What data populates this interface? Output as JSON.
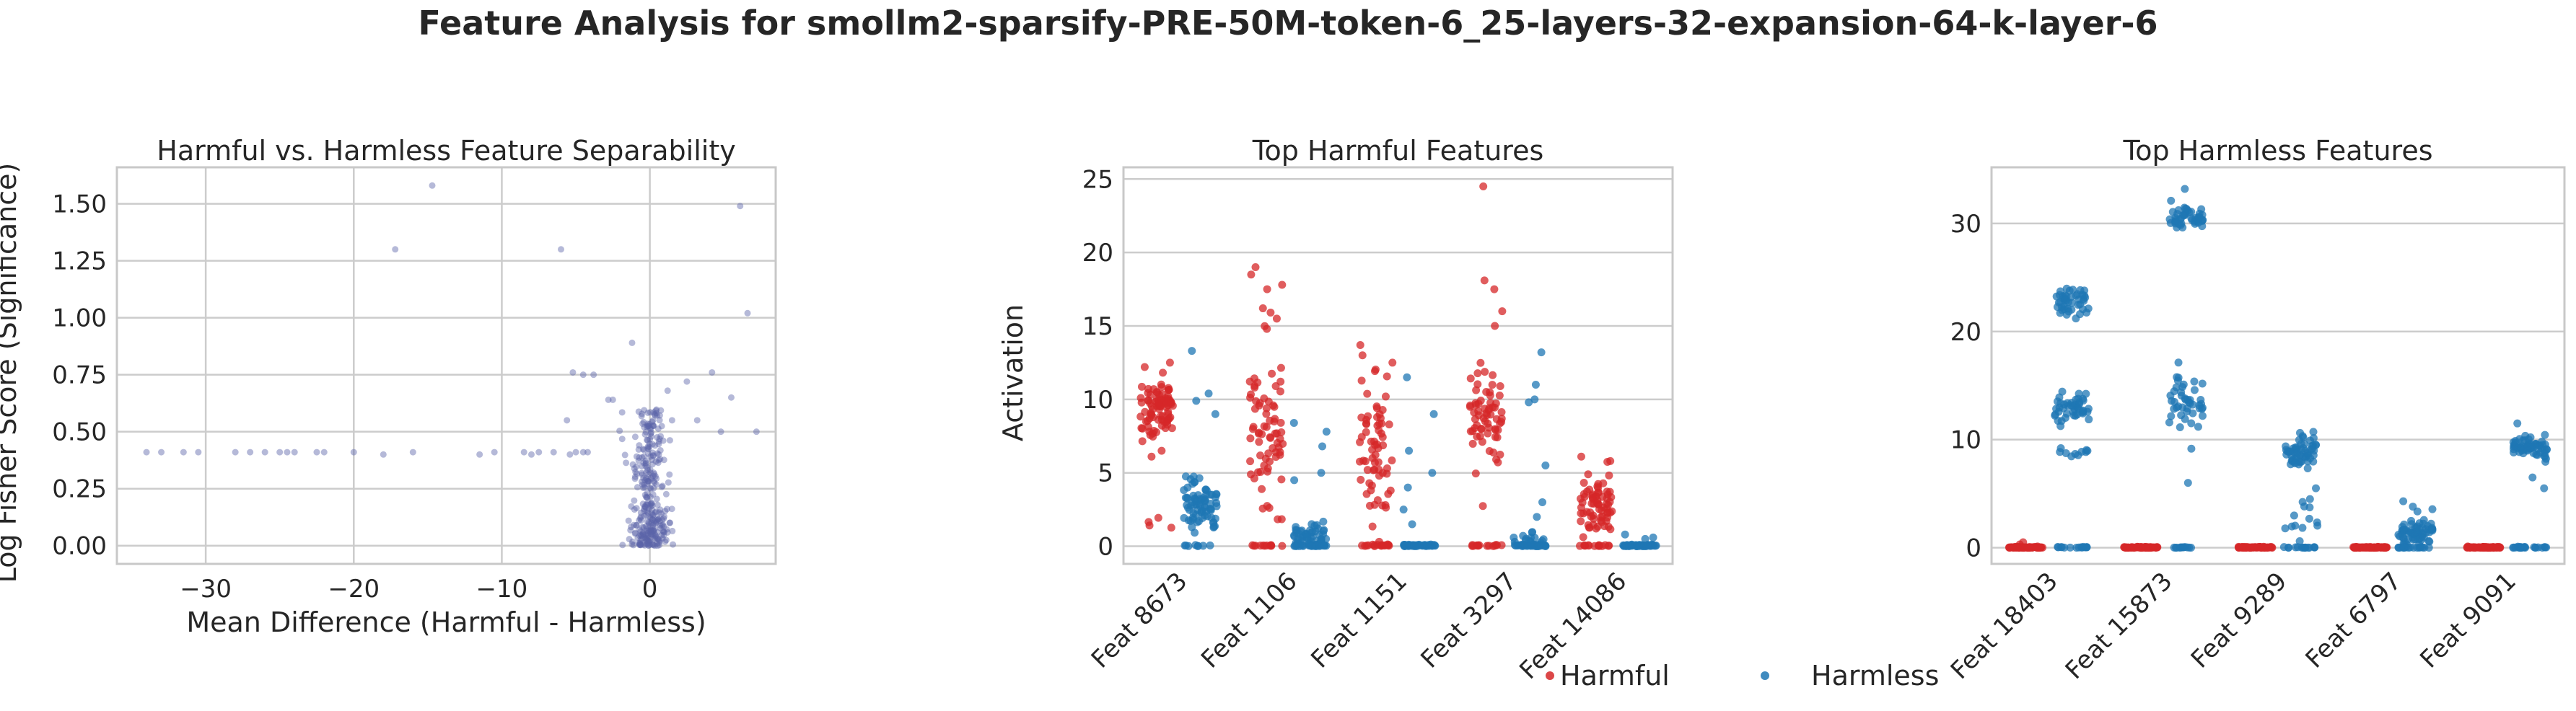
{
  "figure": {
    "title": "Feature Analysis for smollm2-sparsify-PRE-50M-token-6_25-layers-32-expansion-64-k-layer-6"
  },
  "colors": {
    "harmful": "#d62728",
    "harmless": "#1f77b4",
    "scatter": "#5b63a8",
    "grid": "#cccccc",
    "spine": "#c8c8c8"
  },
  "legend": {
    "placement": "bottom-center",
    "items": [
      {
        "label": "Harmful",
        "color": "#d62728"
      },
      {
        "label": "Harmless",
        "color": "#1f77b4"
      }
    ]
  },
  "chart_data": [
    {
      "type": "scatter",
      "title": "Harmful vs. Harmless Feature Separability",
      "xlabel": "Mean Difference (Harmful - Harmless)",
      "ylabel": "Log Fisher Score (Significance)",
      "xlim": [
        -36,
        8.5
      ],
      "ylim": [
        -0.08,
        1.66
      ],
      "xticks": [
        -30,
        -20,
        -10,
        0
      ],
      "yticks": [
        0.0,
        0.25,
        0.5,
        0.75,
        1.0,
        1.25,
        1.5
      ],
      "ytick_labels": [
        "0.00",
        "0.25",
        "0.50",
        "0.75",
        "1.00",
        "1.25",
        "1.50"
      ],
      "grid": true,
      "outliers": [
        {
          "x": -34,
          "y": 0.41
        },
        {
          "x": -33,
          "y": 0.41
        },
        {
          "x": -31.5,
          "y": 0.41
        },
        {
          "x": -30.5,
          "y": 0.41
        },
        {
          "x": -28,
          "y": 0.41
        },
        {
          "x": -27,
          "y": 0.41
        },
        {
          "x": -26,
          "y": 0.41
        },
        {
          "x": -25,
          "y": 0.41
        },
        {
          "x": -24.5,
          "y": 0.41
        },
        {
          "x": -24,
          "y": 0.41
        },
        {
          "x": -22.5,
          "y": 0.41
        },
        {
          "x": -22,
          "y": 0.41
        },
        {
          "x": -20,
          "y": 0.41
        },
        {
          "x": -18,
          "y": 0.4
        },
        {
          "x": -16,
          "y": 0.41
        },
        {
          "x": -14.7,
          "y": 1.58
        },
        {
          "x": -17.2,
          "y": 1.3
        },
        {
          "x": -11.5,
          "y": 0.4
        },
        {
          "x": -10.5,
          "y": 0.41
        },
        {
          "x": -8.5,
          "y": 0.41
        },
        {
          "x": -8,
          "y": 0.4
        },
        {
          "x": -7.5,
          "y": 0.41
        },
        {
          "x": -6.5,
          "y": 0.41
        },
        {
          "x": -6,
          "y": 1.3
        },
        {
          "x": -5.6,
          "y": 0.55
        },
        {
          "x": -5.4,
          "y": 0.4
        },
        {
          "x": -5,
          "y": 0.41
        },
        {
          "x": -4.5,
          "y": 0.41
        },
        {
          "x": -4.2,
          "y": 0.41
        },
        {
          "x": -5.2,
          "y": 0.76
        },
        {
          "x": -4.5,
          "y": 0.75
        },
        {
          "x": -3.8,
          "y": 0.75
        },
        {
          "x": -2.8,
          "y": 0.64
        },
        {
          "x": -2.5,
          "y": 0.64
        },
        {
          "x": -1.2,
          "y": 0.89
        },
        {
          "x": 1.5,
          "y": 0.55
        },
        {
          "x": 1.2,
          "y": 0.68
        },
        {
          "x": 2.5,
          "y": 0.72
        },
        {
          "x": 3.2,
          "y": 0.55
        },
        {
          "x": 4.2,
          "y": 0.76
        },
        {
          "x": 4.8,
          "y": 0.5
        },
        {
          "x": 5.5,
          "y": 0.65
        },
        {
          "x": 6.1,
          "y": 1.49
        },
        {
          "x": 6.6,
          "y": 1.02
        },
        {
          "x": 7.2,
          "y": 0.5
        }
      ],
      "cluster": {
        "x_center": 0.0,
        "x_spread": 1.1,
        "y_min": 0.0,
        "y_max": 0.6,
        "count": 320
      }
    },
    {
      "type": "strip",
      "title": "Top Harmful Features",
      "xlabel": "",
      "ylabel": "Activation",
      "categories": [
        "Feat 8673",
        "Feat 1106",
        "Feat 1151",
        "Feat 3297",
        "Feat 14086"
      ],
      "ylim": [
        -1.2,
        25.8
      ],
      "yticks": [
        0,
        5,
        10,
        15,
        20,
        25
      ],
      "grid": true,
      "series": [
        {
          "name": "Harmful",
          "color": "#d62728",
          "groups": [
            {
              "clusters": [
                {
                  "center": 9.2,
                  "spread": 1.6,
                  "count": 85
                },
                {
                  "center": 1.5,
                  "spread": 0.6,
                  "count": 4
                }
              ],
              "outliers": [
                12.2,
                12.5,
                6.5,
                6.1
              ]
            },
            {
              "clusters": [
                {
                  "center": 7.5,
                  "spread": 4.5,
                  "count": 70
                },
                {
                  "center": 0.05,
                  "spread": 0.05,
                  "count": 12
                }
              ],
              "outliers": [
                19.0,
                18.5,
                17.8,
                17.5,
                16.2,
                15.5,
                14.8
              ]
            },
            {
              "clusters": [
                {
                  "center": 6.5,
                  "spread": 4.0,
                  "count": 65
                },
                {
                  "center": 0.05,
                  "spread": 0.05,
                  "count": 18
                }
              ],
              "outliers": [
                13.7,
                13.0,
                12.5
              ]
            },
            {
              "clusters": [
                {
                  "center": 9.0,
                  "spread": 3.0,
                  "count": 65
                },
                {
                  "center": 0.05,
                  "spread": 0.05,
                  "count": 15
                }
              ],
              "outliers": [
                24.5,
                18.1,
                17.5,
                16.0,
                15.0
              ]
            },
            {
              "clusters": [
                {
                  "center": 2.8,
                  "spread": 1.8,
                  "count": 70
                },
                {
                  "center": 0.05,
                  "spread": 0.05,
                  "count": 15
                }
              ],
              "outliers": [
                6.1,
                5.8
              ]
            }
          ]
        },
        {
          "name": "Harmless",
          "color": "#1f77b4",
          "groups": [
            {
              "clusters": [
                {
                  "center": 3.0,
                  "spread": 1.4,
                  "count": 75
                },
                {
                  "center": 0.05,
                  "spread": 0.05,
                  "count": 8
                }
              ],
              "outliers": [
                13.3,
                10.4,
                9.9,
                9.0
              ]
            },
            {
              "clusters": [
                {
                  "center": 0.7,
                  "spread": 0.8,
                  "count": 55
                },
                {
                  "center": 0.05,
                  "spread": 0.05,
                  "count": 25
                }
              ],
              "outliers": [
                8.4,
                7.8,
                6.8,
                5.0,
                4.5
              ]
            },
            {
              "clusters": [
                {
                  "center": 0.05,
                  "spread": 0.05,
                  "count": 60
                }
              ],
              "outliers": [
                11.5,
                9.0,
                6.5,
                5.0,
                4.0,
                2.5,
                1.5
              ]
            },
            {
              "clusters": [
                {
                  "center": 0.05,
                  "spread": 0.05,
                  "count": 50
                },
                {
                  "center": 0.5,
                  "spread": 0.4,
                  "count": 15
                }
              ],
              "outliers": [
                13.2,
                11.0,
                10.0,
                9.8,
                5.5,
                3.0,
                2.0
              ]
            },
            {
              "clusters": [
                {
                  "center": 0.05,
                  "spread": 0.05,
                  "count": 60
                }
              ],
              "outliers": [
                0.8,
                0.6,
                0.5
              ]
            }
          ]
        }
      ]
    },
    {
      "type": "strip",
      "title": "Top Harmless Features",
      "xlabel": "",
      "ylabel": "",
      "categories": [
        "Feat 18403",
        "Feat 15873",
        "Feat 9289",
        "Feat 6797",
        "Feat 9091"
      ],
      "ylim": [
        -1.5,
        35.2
      ],
      "yticks": [
        0,
        10,
        20,
        30
      ],
      "grid": true,
      "series": [
        {
          "name": "Harmful",
          "color": "#d62728",
          "groups": [
            {
              "clusters": [
                {
                  "center": 0.02,
                  "spread": 0.05,
                  "count": 70
                }
              ],
              "outliers": [
                0.5,
                0.3
              ]
            },
            {
              "clusters": [
                {
                  "center": 0.02,
                  "spread": 0.05,
                  "count": 70
                }
              ],
              "outliers": []
            },
            {
              "clusters": [
                {
                  "center": 0.02,
                  "spread": 0.05,
                  "count": 70
                }
              ],
              "outliers": []
            },
            {
              "clusters": [
                {
                  "center": 0.02,
                  "spread": 0.05,
                  "count": 70
                }
              ],
              "outliers": []
            },
            {
              "clusters": [
                {
                  "center": 0.02,
                  "spread": 0.05,
                  "count": 70
                }
              ],
              "outliers": []
            }
          ]
        },
        {
          "name": "Harmless",
          "color": "#1f77b4",
          "groups": [
            {
              "clusters": [
                {
                  "center": 22.8,
                  "spread": 1.2,
                  "count": 45
                },
                {
                  "center": 13.0,
                  "spread": 1.0,
                  "count": 45
                },
                {
                  "center": 8.8,
                  "spread": 0.5,
                  "count": 10
                },
                {
                  "center": 0.02,
                  "spread": 0.05,
                  "count": 15
                }
              ],
              "outliers": []
            },
            {
              "clusters": [
                {
                  "center": 30.8,
                  "spread": 0.9,
                  "count": 45
                },
                {
                  "center": 13.5,
                  "spread": 2.8,
                  "count": 45
                },
                {
                  "center": 0.02,
                  "spread": 0.05,
                  "count": 12
                }
              ],
              "outliers": [
                33.2,
                6.0
              ]
            },
            {
              "clusters": [
                {
                  "center": 8.8,
                  "spread": 1.2,
                  "count": 60
                },
                {
                  "center": 0.02,
                  "spread": 0.05,
                  "count": 15
                },
                {
                  "center": 2.0,
                  "spread": 1.5,
                  "count": 12
                }
              ],
              "outliers": [
                5.5,
                4.5
              ]
            },
            {
              "clusters": [
                {
                  "center": 1.5,
                  "spread": 1.2,
                  "count": 70
                },
                {
                  "center": 0.02,
                  "spread": 0.05,
                  "count": 15
                }
              ],
              "outliers": [
                4.3,
                3.8
              ]
            },
            {
              "clusters": [
                {
                  "center": 9.3,
                  "spread": 0.8,
                  "count": 65
                },
                {
                  "center": 0.02,
                  "spread": 0.05,
                  "count": 25
                }
              ],
              "outliers": [
                11.5,
                6.5,
                5.5
              ]
            }
          ]
        }
      ]
    }
  ]
}
